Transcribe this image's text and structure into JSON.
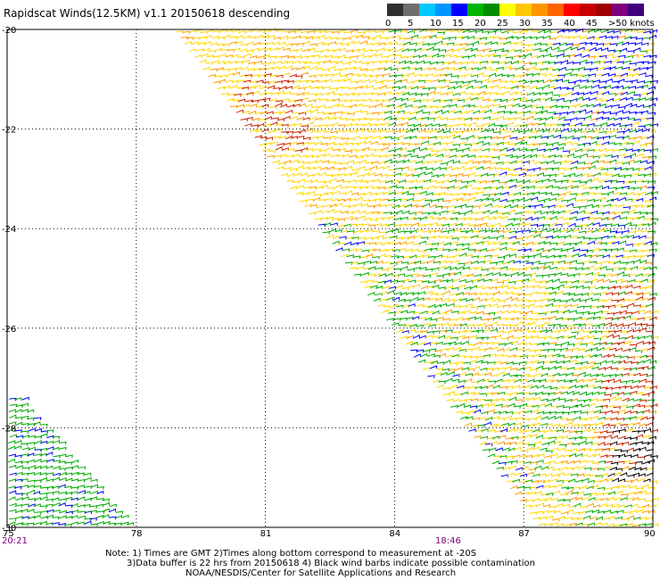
{
  "title": "Rapidscat Winds(12.5KM) v1.1 20150618 descending",
  "color_scale": {
    "labels": [
      "0",
      "5",
      "10",
      "15",
      "20",
      "25",
      "30",
      "35",
      "40",
      "45",
      ">50 knots"
    ],
    "colors": [
      "#303030",
      "#6e6e6e",
      "#00c8ff",
      "#0096ff",
      "#0000ff",
      "#00b400",
      "#008c00",
      "#ffff00",
      "#ffc800",
      "#ff9600",
      "#ff6400",
      "#ff0000",
      "#c80000",
      "#a00000",
      "#800080",
      "#400080"
    ]
  },
  "axes": {
    "lat_labels": [
      "-20",
      "-22",
      "-24",
      "-26",
      "-28",
      "-30"
    ],
    "lon_labels": [
      "75",
      "78",
      "81",
      "84",
      "87",
      "90"
    ],
    "lat_range": [
      -20,
      -30
    ],
    "lon_range": [
      75,
      90
    ]
  },
  "time_labels": [
    "20:21",
    "18:46"
  ],
  "notes": [
    "Note: 1) Times are GMT 2)Times along bottom correspond to measurement at -20S",
    "3)Data buffer is 22 hrs from 20150618 4) Black wind barbs indicate possible contamination",
    "NOAA/NESDIS/Center for Satellite Applications and Research"
  ],
  "wind_colors": {
    "blue": "#0000ff",
    "green": "#00aa00",
    "yellow": "#ffd700",
    "orange": "#ff9900",
    "red": "#cc2200",
    "black": "#000000"
  }
}
